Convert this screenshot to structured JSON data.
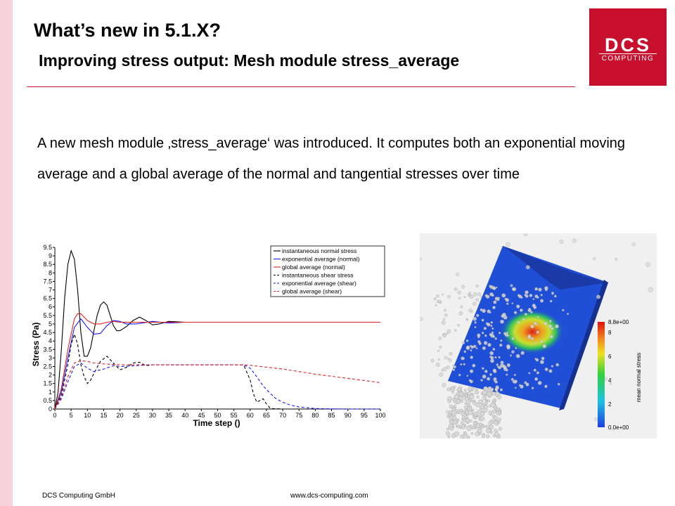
{
  "slide": {
    "title": "What’s new in 5.1.X?",
    "subtitle": "Improving stress output: Mesh module stress_average",
    "body": "A new mesh module ‚stress_average‘ was introduced. It computes both an exponential moving average and a global average of the normal and tangential stresses over time"
  },
  "logo": {
    "main": "DCS",
    "sub": "COMPUTING",
    "color": "#c8102e"
  },
  "footer": {
    "company": "DCS Computing GmbH",
    "url": "www.dcs-computing.com"
  },
  "chart_data": {
    "type": "line",
    "xlabel": "Time step ()",
    "ylabel": "Stress (Pa)",
    "xlim": [
      0,
      100
    ],
    "ylim": [
      0,
      9.5
    ],
    "xticks": [
      0,
      5,
      10,
      15,
      20,
      25,
      30,
      35,
      40,
      45,
      50,
      55,
      60,
      65,
      70,
      75,
      80,
      85,
      90,
      95,
      100
    ],
    "yticks": [
      0,
      0.5,
      1,
      1.5,
      2,
      2.5,
      3,
      3.5,
      4,
      4.5,
      5,
      5.5,
      6,
      6.5,
      7,
      7.5,
      8,
      8.5,
      9,
      9.5
    ],
    "legend_position": "top-right",
    "series": [
      {
        "name": "instantaneous normal stress",
        "color": "#000000",
        "dash": false,
        "x": [
          0,
          1,
          2,
          3,
          4,
          5,
          6,
          7,
          8,
          9,
          10,
          11,
          12,
          13,
          14,
          15,
          16,
          17,
          18,
          19,
          20,
          22,
          24,
          26,
          28,
          30,
          32,
          35,
          40,
          45,
          50,
          60,
          70,
          80,
          90,
          100
        ],
        "y": [
          0,
          1.0,
          3.5,
          6.5,
          8.5,
          9.3,
          8.8,
          7.0,
          4.5,
          3.1,
          3.1,
          3.6,
          4.6,
          5.5,
          6.1,
          6.3,
          6.1,
          5.5,
          4.9,
          4.6,
          4.6,
          4.85,
          5.2,
          5.4,
          5.2,
          4.95,
          5.0,
          5.15,
          5.1,
          5.1,
          5.1,
          5.1,
          5.1,
          5.1,
          5.1,
          5.1
        ]
      },
      {
        "name": "exponential average (normal)",
        "color": "#1a1aff",
        "dash": false,
        "x": [
          0,
          2,
          4,
          6,
          8,
          10,
          12,
          14,
          16,
          18,
          20,
          22,
          25,
          30,
          35,
          40,
          50,
          60,
          70,
          80,
          90,
          100
        ],
        "y": [
          0,
          1.0,
          3.0,
          4.8,
          5.3,
          4.8,
          4.4,
          4.45,
          4.9,
          5.2,
          5.15,
          5.0,
          5.0,
          5.15,
          5.05,
          5.1,
          5.1,
          5.1,
          5.1,
          5.1,
          5.1,
          5.1
        ]
      },
      {
        "name": "global average (normal)",
        "color": "#e02020",
        "dash": false,
        "x": [
          0,
          2,
          4,
          6,
          7,
          8,
          9,
          10,
          12,
          14,
          16,
          18,
          20,
          25,
          30,
          40,
          50,
          60,
          70,
          80,
          90,
          100
        ],
        "y": [
          0,
          1.2,
          3.5,
          5.3,
          5.6,
          5.6,
          5.4,
          5.2,
          5.0,
          5.0,
          5.1,
          5.15,
          5.1,
          5.1,
          5.1,
          5.1,
          5.1,
          5.1,
          5.1,
          5.1,
          5.1,
          5.1
        ]
      },
      {
        "name": "instantaneous shear stress",
        "color": "#000000",
        "dash": true,
        "x": [
          0,
          2,
          4,
          5,
          6,
          7,
          8,
          9,
          10,
          11,
          12,
          14,
          16,
          18,
          20,
          22,
          24,
          26,
          28,
          30,
          35,
          40,
          50,
          55,
          57,
          58,
          60,
          61,
          62,
          63,
          64,
          65,
          66,
          67,
          70,
          75,
          80,
          90,
          100
        ],
        "y": [
          0,
          0.8,
          2.6,
          3.8,
          4.4,
          3.8,
          2.6,
          1.9,
          1.5,
          1.7,
          2.1,
          2.8,
          3.1,
          2.7,
          2.3,
          2.45,
          2.7,
          2.75,
          2.55,
          2.6,
          2.6,
          2.6,
          2.6,
          2.6,
          2.6,
          2.6,
          1.7,
          0.9,
          0.4,
          0.5,
          0.6,
          0.3,
          0.08,
          0.02,
          0,
          0,
          0,
          0,
          0
        ]
      },
      {
        "name": "exponential average (shear)",
        "color": "#1a1aff",
        "dash": true,
        "x": [
          0,
          2,
          4,
          6,
          8,
          10,
          12,
          15,
          18,
          20,
          25,
          30,
          35,
          40,
          50,
          55,
          58,
          60,
          62,
          64,
          66,
          68,
          70,
          72,
          75,
          80,
          85,
          90,
          100
        ],
        "y": [
          0,
          0.6,
          1.6,
          2.5,
          2.7,
          2.4,
          2.2,
          2.35,
          2.55,
          2.5,
          2.55,
          2.6,
          2.6,
          2.6,
          2.6,
          2.6,
          2.6,
          2.4,
          1.9,
          1.35,
          0.95,
          0.6,
          0.4,
          0.25,
          0.12,
          0.03,
          0.01,
          0,
          0
        ]
      },
      {
        "name": "global average (shear)",
        "color": "#e02020",
        "dash": true,
        "x": [
          0,
          2,
          4,
          6,
          8,
          10,
          12,
          15,
          20,
          25,
          30,
          40,
          50,
          58,
          60,
          70,
          80,
          90,
          100
        ],
        "y": [
          0,
          0.7,
          1.9,
          2.7,
          2.85,
          2.8,
          2.7,
          2.65,
          2.6,
          2.6,
          2.6,
          2.6,
          2.6,
          2.6,
          2.57,
          2.35,
          2.05,
          1.8,
          1.55
        ]
      }
    ]
  },
  "render": {
    "colorbar_title": "mean normal stress",
    "max_label": "8.8e+00",
    "min_label": "0.0e+00",
    "ticks": [
      "8",
      "6",
      "4",
      "2"
    ],
    "background": "#f0f0f0",
    "surface_color": "#1f4fd6"
  }
}
